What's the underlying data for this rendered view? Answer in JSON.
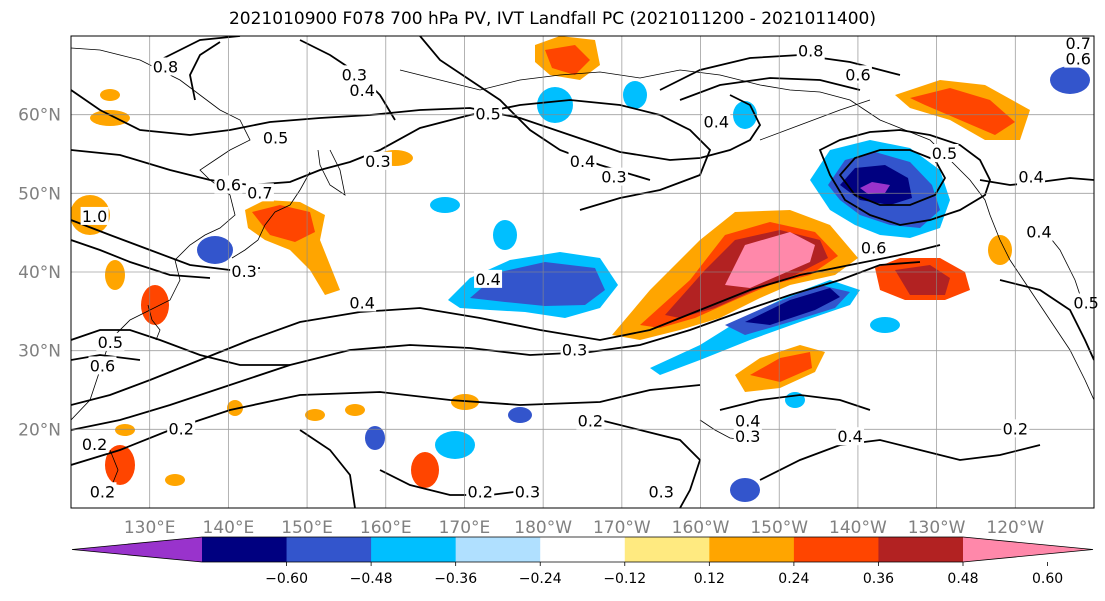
{
  "title": "2021010900 F078 700 hPa PV, IVT Landfall PC (2021011200 - 2021011400)",
  "map": {
    "lon_range": [
      120,
      250
    ],
    "lat_range": [
      10,
      70
    ],
    "lon_ticks": [
      130,
      140,
      150,
      160,
      170,
      180,
      190,
      200,
      210,
      220,
      230,
      240
    ],
    "lon_tick_labels": [
      "130°E",
      "140°E",
      "150°E",
      "160°E",
      "170°E",
      "180°W",
      "170°W",
      "160°W",
      "150°W",
      "140°W",
      "130°W",
      "120°W"
    ],
    "lat_ticks": [
      20,
      30,
      40,
      50,
      60
    ],
    "lat_tick_labels": [
      "20°N",
      "30°N",
      "40°N",
      "50°N",
      "60°N"
    ],
    "grid": true
  },
  "colorbar": {
    "colors": [
      "#9933cc",
      "#000080",
      "#3355cc",
      "#00bfff",
      "#b0e0ff",
      "#ffffff",
      "#ffea80",
      "#ffa500",
      "#ff4500",
      "#b22222",
      "#ff88aa"
    ],
    "tick_labels": [
      "−0.60",
      "−0.48",
      "−0.36",
      "−0.24",
      "−0.12",
      "0.12",
      "0.24",
      "0.36",
      "0.48",
      "0.60"
    ],
    "extend": "both"
  },
  "contour_labels": [
    {
      "text": "0.8",
      "lon": 132,
      "lat": 66
    },
    {
      "text": "0.3",
      "lon": 156,
      "lat": 65
    },
    {
      "text": "0.4",
      "lon": 157,
      "lat": 63
    },
    {
      "text": "0.5",
      "lon": 146,
      "lat": 57
    },
    {
      "text": "0.6",
      "lon": 140,
      "lat": 51
    },
    {
      "text": "0.7",
      "lon": 144,
      "lat": 50
    },
    {
      "text": "0.3",
      "lon": 159,
      "lat": 54
    },
    {
      "text": "0.3",
      "lon": 142,
      "lat": 40
    },
    {
      "text": "0.4",
      "lon": 157,
      "lat": 36
    },
    {
      "text": "0.5",
      "lon": 125,
      "lat": 31
    },
    {
      "text": "0.6",
      "lon": 124,
      "lat": 28
    },
    {
      "text": "0.2",
      "lon": 134,
      "lat": 20
    },
    {
      "text": "0.4",
      "lon": 173,
      "lat": 39
    },
    {
      "text": "0.5",
      "lon": 173,
      "lat": 60
    },
    {
      "text": "0.4",
      "lon": 185,
      "lat": 54
    },
    {
      "text": "0.3",
      "lon": 189,
      "lat": 52
    },
    {
      "text": "0.3",
      "lon": 184,
      "lat": 30
    },
    {
      "text": "0.2",
      "lon": 186,
      "lat": 21
    },
    {
      "text": "0.2",
      "lon": 172,
      "lat": 12
    },
    {
      "text": "0.3",
      "lon": 178,
      "lat": 12
    },
    {
      "text": "0.3",
      "lon": 195,
      "lat": 12
    },
    {
      "text": "0.8",
      "lon": 214,
      "lat": 68
    },
    {
      "text": "0.6",
      "lon": 220,
      "lat": 65
    },
    {
      "text": "0.4",
      "lon": 202,
      "lat": 59
    },
    {
      "text": "0.5",
      "lon": 231,
      "lat": 55
    },
    {
      "text": "0.4",
      "lon": 242,
      "lat": 52
    },
    {
      "text": "0.6",
      "lon": 222,
      "lat": 43
    },
    {
      "text": "0.4",
      "lon": 243,
      "lat": 45
    },
    {
      "text": "0.5",
      "lon": 249,
      "lat": 36
    },
    {
      "text": "0.4",
      "lon": 206,
      "lat": 21
    },
    {
      "text": "0.3",
      "lon": 206,
      "lat": 19
    },
    {
      "text": "0.4",
      "lon": 219,
      "lat": 19
    },
    {
      "text": "0.2",
      "lon": 240,
      "lat": 20
    },
    {
      "text": "0.2",
      "lon": 123,
      "lat": 18
    },
    {
      "text": "0.2",
      "lon": 124,
      "lat": 12
    },
    {
      "text": "1.0",
      "lon": 123,
      "lat": 47
    },
    {
      "text": "0.7",
      "lon": 248,
      "lat": 69
    },
    {
      "text": "0.6",
      "lon": 248,
      "lat": 67
    }
  ]
}
